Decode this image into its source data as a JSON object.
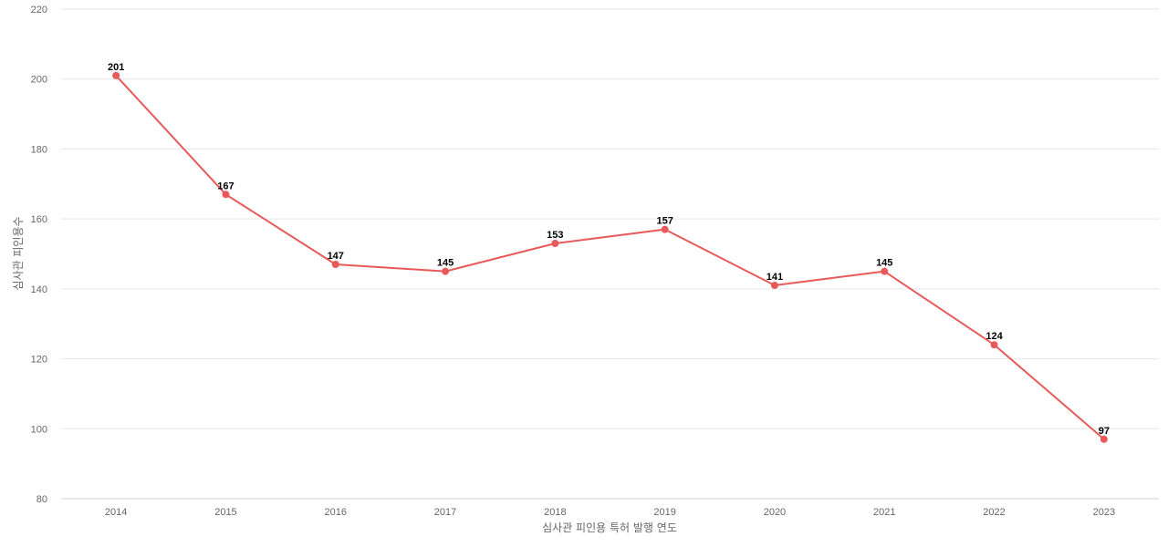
{
  "chart_data": {
    "type": "line",
    "title": "",
    "xlabel": "심사관 피인용 특허 발행 연도",
    "ylabel": "심사관 피인용수",
    "ylim": [
      80,
      220
    ],
    "yticks": [
      80,
      100,
      120,
      140,
      160,
      180,
      200,
      220
    ],
    "grid": true,
    "categories": [
      "2014",
      "2015",
      "2016",
      "2017",
      "2018",
      "2019",
      "2020",
      "2021",
      "2022",
      "2023"
    ],
    "series": [
      {
        "values": [
          201,
          167,
          147,
          145,
          153,
          157,
          141,
          145,
          124,
          97
        ],
        "color": "#e85a5a"
      }
    ]
  }
}
